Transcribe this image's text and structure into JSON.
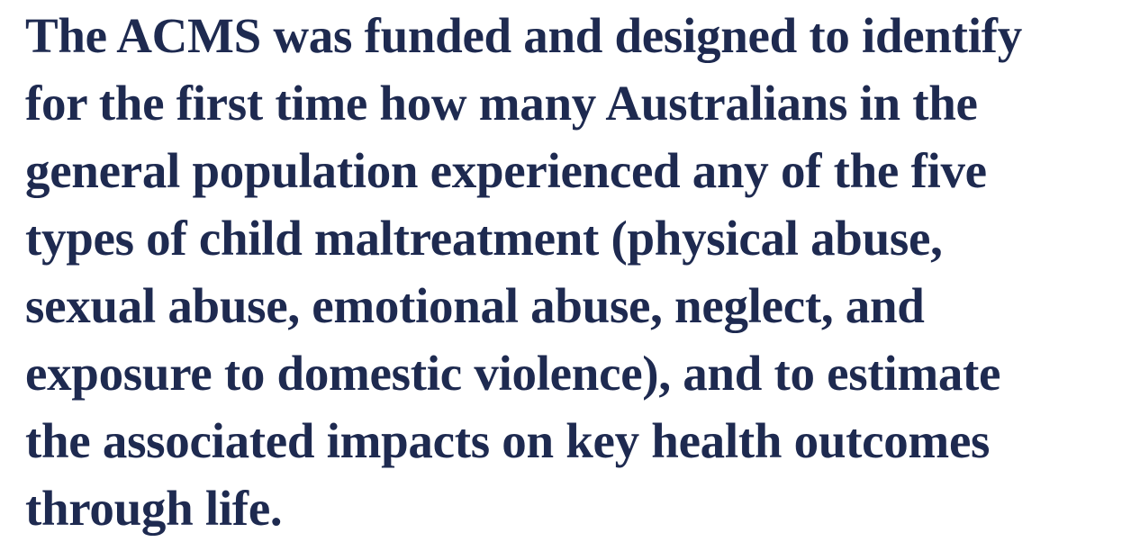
{
  "paragraph": {
    "lines": [
      "The ACMS was funded and designed to identify",
      "for the first time how many Australians in the",
      "general population experienced any of the five",
      "types of child maltreatment (physical abuse,",
      "sexual abuse, emotional abuse, neglect, and",
      "exposure to domestic violence), and to estimate",
      "the associated impacts on key health outcomes",
      "through life."
    ]
  }
}
